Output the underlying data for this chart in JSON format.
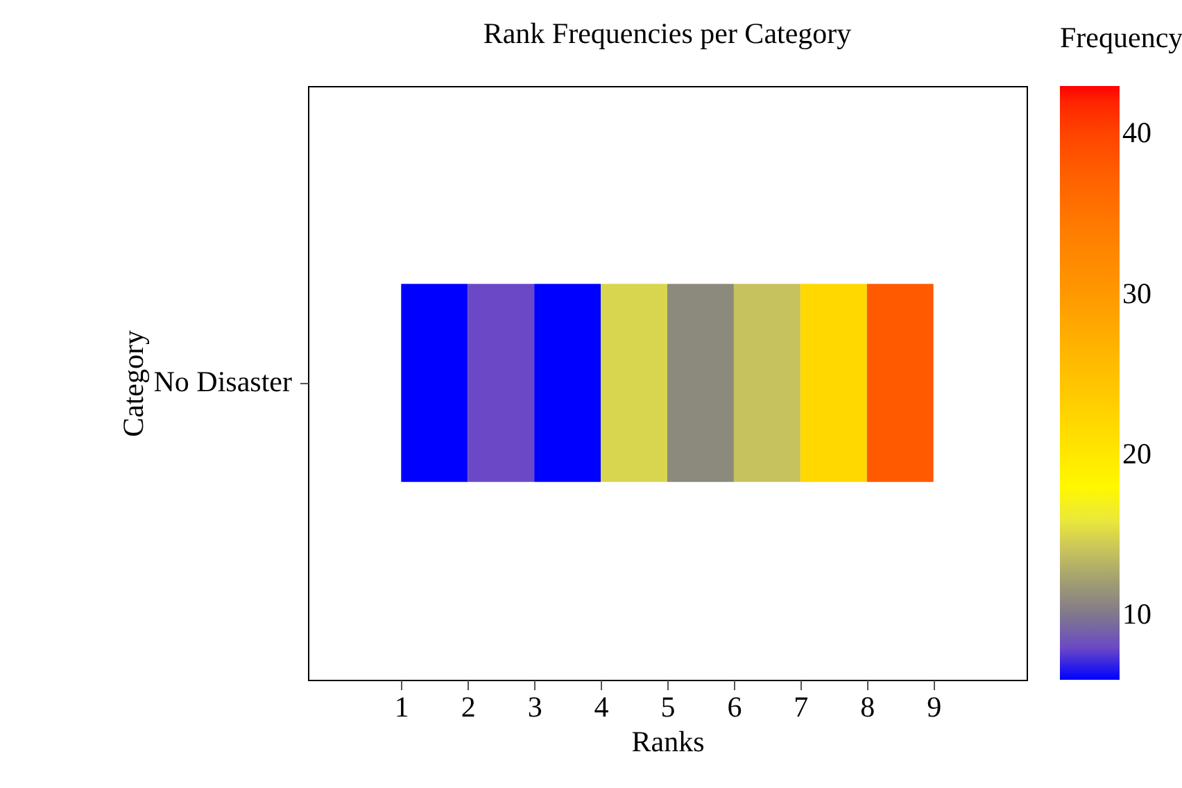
{
  "chart_data": {
    "type": "heatmap",
    "title": "Rank Frequencies per Category",
    "xlabel": "Ranks",
    "ylabel": "Category",
    "clabel": "Frequency",
    "x": [
      1.5,
      2.5,
      3.5,
      4.5,
      5.5,
      6.5,
      7.5,
      8.5
    ],
    "y_categories": [
      "No Disaster"
    ],
    "cells": [
      [
        6,
        8,
        6,
        15,
        11,
        14,
        22,
        38
      ]
    ],
    "xlim": [
      -0.4,
      10.4
    ],
    "xticks": [
      1,
      2,
      3,
      4,
      5,
      6,
      7,
      8,
      9
    ],
    "clim": [
      6,
      43
    ],
    "cticks": [
      10,
      20,
      30,
      40
    ]
  }
}
